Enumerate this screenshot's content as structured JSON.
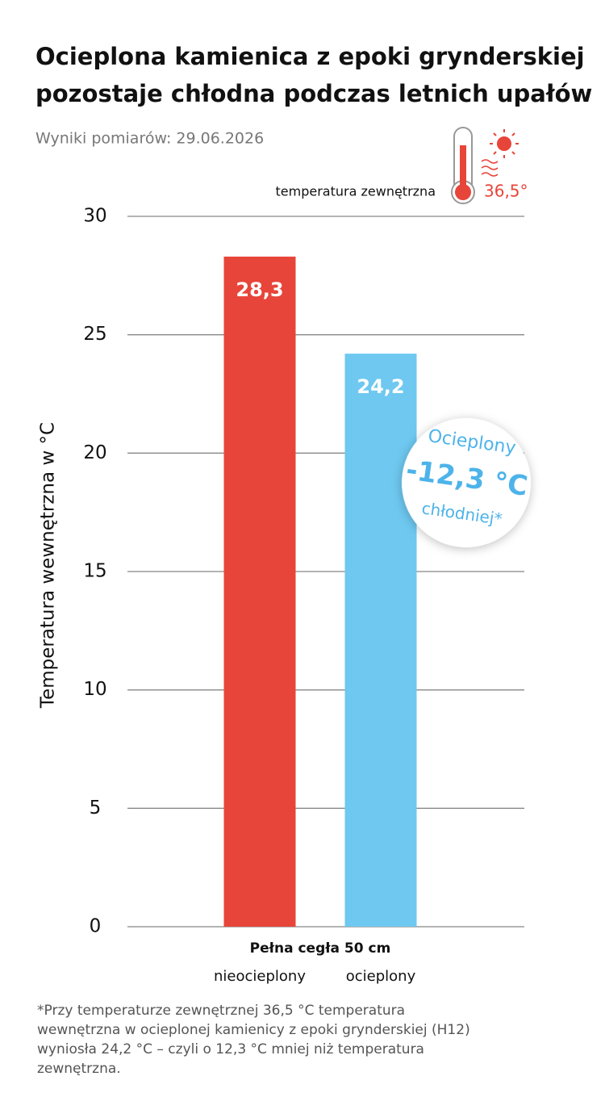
{
  "chart_data": {
    "type": "bar",
    "title": [
      "Ocieplona kamienica z epoki grynderskiej",
      "pozostaje chłodna podczas letnich upałów"
    ],
    "subtitle": "Wyniki pomiarów: 29.06.2026",
    "y_label": "Temperatura wewnętrzna w °C",
    "x_label": "Pełna cegła 50 cm",
    "categories": [
      "nieocieplony",
      "ocieplony"
    ],
    "values": [
      28.3,
      24.2
    ],
    "value_labels": [
      "28,3",
      "24,2"
    ],
    "colors": [
      "#e8453a",
      "#6ec8f0"
    ],
    "ylim": [
      0,
      30
    ],
    "yticks": [
      0,
      5,
      10,
      15,
      20,
      25,
      30
    ],
    "grid": true,
    "outside_temperature": {
      "label": "temperatura zewnętrzna",
      "value": 36.5,
      "value_label": "36,5°"
    },
    "callout": {
      "title": "Ocieplony",
      "value": -12.3,
      "value_label": "-12,3 °C",
      "caption": "chłodniej*"
    },
    "footnote": [
      "*Przy temperaturze zewnętrznej 36,5 °C temperatura",
      "wewnętrzna w ocieplonej kamienicy z epoki grynderskiej (H12)",
      "wyniosła 24,2 °C – czyli o 12,3 °C mniej niż temperatura",
      "zewnętrzna."
    ]
  }
}
